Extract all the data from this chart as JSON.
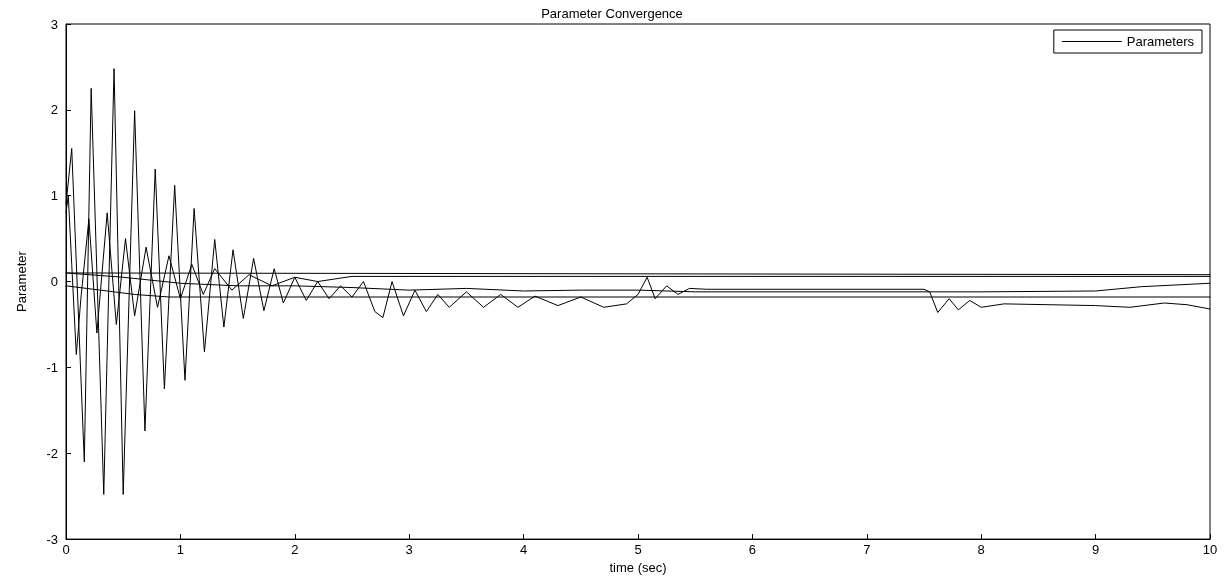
{
  "chart_data": {
    "type": "line",
    "title": "Parameter Convergence",
    "xlabel": "time (sec)",
    "ylabel": "Parameter",
    "xlim": [
      0,
      10
    ],
    "xticks": [
      0,
      1,
      2,
      3,
      4,
      5,
      6,
      7,
      8,
      9,
      10
    ],
    "ylim": [
      -3,
      3
    ],
    "yticks": [
      -3,
      -2,
      -1,
      0,
      1,
      2,
      3
    ],
    "grid": false,
    "legend": "top right",
    "marker": "none",
    "line_style": "solid",
    "series": [
      {
        "name": "Parameters",
        "color": "#000000",
        "x": [
          0,
          0.05,
          0.16,
          0.22,
          0.33,
          0.42,
          0.5,
          0.6,
          0.69,
          0.78,
          0.86,
          0.95,
          1.04,
          1.12,
          1.21,
          1.3,
          1.38,
          1.46,
          1.55,
          1.64,
          1.73,
          1.82,
          1.9,
          2.0,
          2.1,
          2.2,
          2.3,
          2.4,
          2.5,
          2.6,
          2.7,
          2.77,
          2.85,
          2.95,
          3.05,
          3.15,
          3.25,
          3.35,
          3.5,
          3.65,
          3.8,
          3.95,
          4.1,
          4.3,
          4.5,
          4.7,
          4.9,
          5.0,
          5.08,
          5.15,
          5.25,
          5.35,
          5.45,
          5.6,
          7.5,
          7.55,
          7.62,
          7.72,
          7.8,
          7.9,
          8.0,
          8.2,
          8.6,
          9.0,
          9.3,
          9.6,
          9.8,
          10
        ],
        "values": [
          0.9,
          1.55,
          -2.1,
          2.25,
          -2.48,
          2.48,
          -2.48,
          1.99,
          -1.74,
          1.31,
          -1.25,
          1.12,
          -1.15,
          0.85,
          -0.82,
          0.49,
          -0.53,
          0.37,
          -0.43,
          0.27,
          -0.34,
          0.15,
          -0.25,
          0.05,
          -0.22,
          0.0,
          -0.2,
          -0.05,
          -0.18,
          0.0,
          -0.35,
          -0.42,
          0.0,
          -0.4,
          -0.1,
          -0.35,
          -0.15,
          -0.3,
          -0.12,
          -0.3,
          -0.15,
          -0.3,
          -0.17,
          -0.28,
          -0.18,
          -0.3,
          -0.26,
          -0.15,
          0.05,
          -0.2,
          -0.05,
          -0.15,
          -0.08,
          -0.09,
          -0.09,
          -0.12,
          -0.36,
          -0.2,
          -0.33,
          -0.22,
          -0.3,
          -0.26,
          -0.27,
          -0.28,
          -0.3,
          -0.25,
          -0.27,
          -0.32
        ]
      },
      {
        "color": "#000000",
        "x": [
          0,
          0.02,
          0.05,
          0.09,
          0.13,
          0.2,
          0.27,
          0.36,
          0.44,
          0.52,
          0.6,
          0.7,
          0.8,
          0.9,
          1.0,
          1.1,
          1.2,
          1.3,
          1.45,
          1.6,
          1.8,
          2.0,
          2.2,
          2.5,
          10
        ],
        "values": [
          0.8,
          1.0,
          0.2,
          -0.85,
          -0.2,
          0.73,
          -0.6,
          0.8,
          -0.5,
          0.5,
          -0.4,
          0.4,
          -0.3,
          0.3,
          -0.2,
          0.2,
          -0.15,
          0.15,
          -0.1,
          0.08,
          -0.05,
          0.05,
          0.0,
          0.06,
          0.06
        ]
      },
      {
        "color": "#000000",
        "x": [
          0,
          10
        ],
        "values": [
          0.1,
          0.08
        ]
      },
      {
        "color": "#000000",
        "x": [
          0,
          0.3,
          0.6,
          0.9,
          10
        ],
        "values": [
          -0.05,
          -0.1,
          -0.15,
          -0.18,
          -0.18
        ]
      },
      {
        "color": "#000000",
        "x": [
          0,
          0.5,
          1,
          1.5,
          2,
          2.5,
          3,
          3.5,
          4,
          4.5,
          5,
          5.5,
          7.5,
          8,
          9,
          9.4,
          10
        ],
        "values": [
          0.1,
          0.05,
          -0.02,
          -0.05,
          -0.05,
          -0.07,
          -0.1,
          -0.08,
          -0.11,
          -0.1,
          -0.1,
          -0.12,
          -0.12,
          -0.12,
          -0.11,
          -0.06,
          -0.02
        ]
      }
    ]
  }
}
